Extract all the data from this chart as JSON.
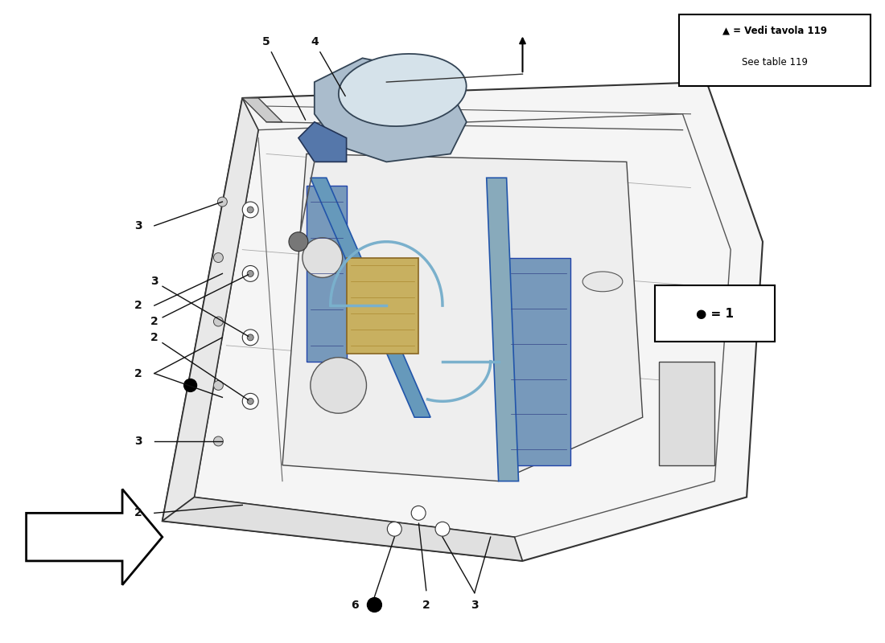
{
  "background_color": "#ffffff",
  "legend_box_text_line1": "▲ = Vedi tavola 119",
  "legend_box_text_line2": "See table 119",
  "bullet_legend": "● = 1",
  "door_fill": "#f8f8f8",
  "door_stroke": "#333333",
  "mirror_blue_dark": "#5577aa",
  "mirror_blue_light": "#aac4d8",
  "rail_blue": "#6699bb",
  "cable_blue": "#7ab0cc",
  "yellow_highlight": "#d4c060",
  "watermark_gray": "#e0e0e0",
  "watermark_yellow": "#d8cc70"
}
